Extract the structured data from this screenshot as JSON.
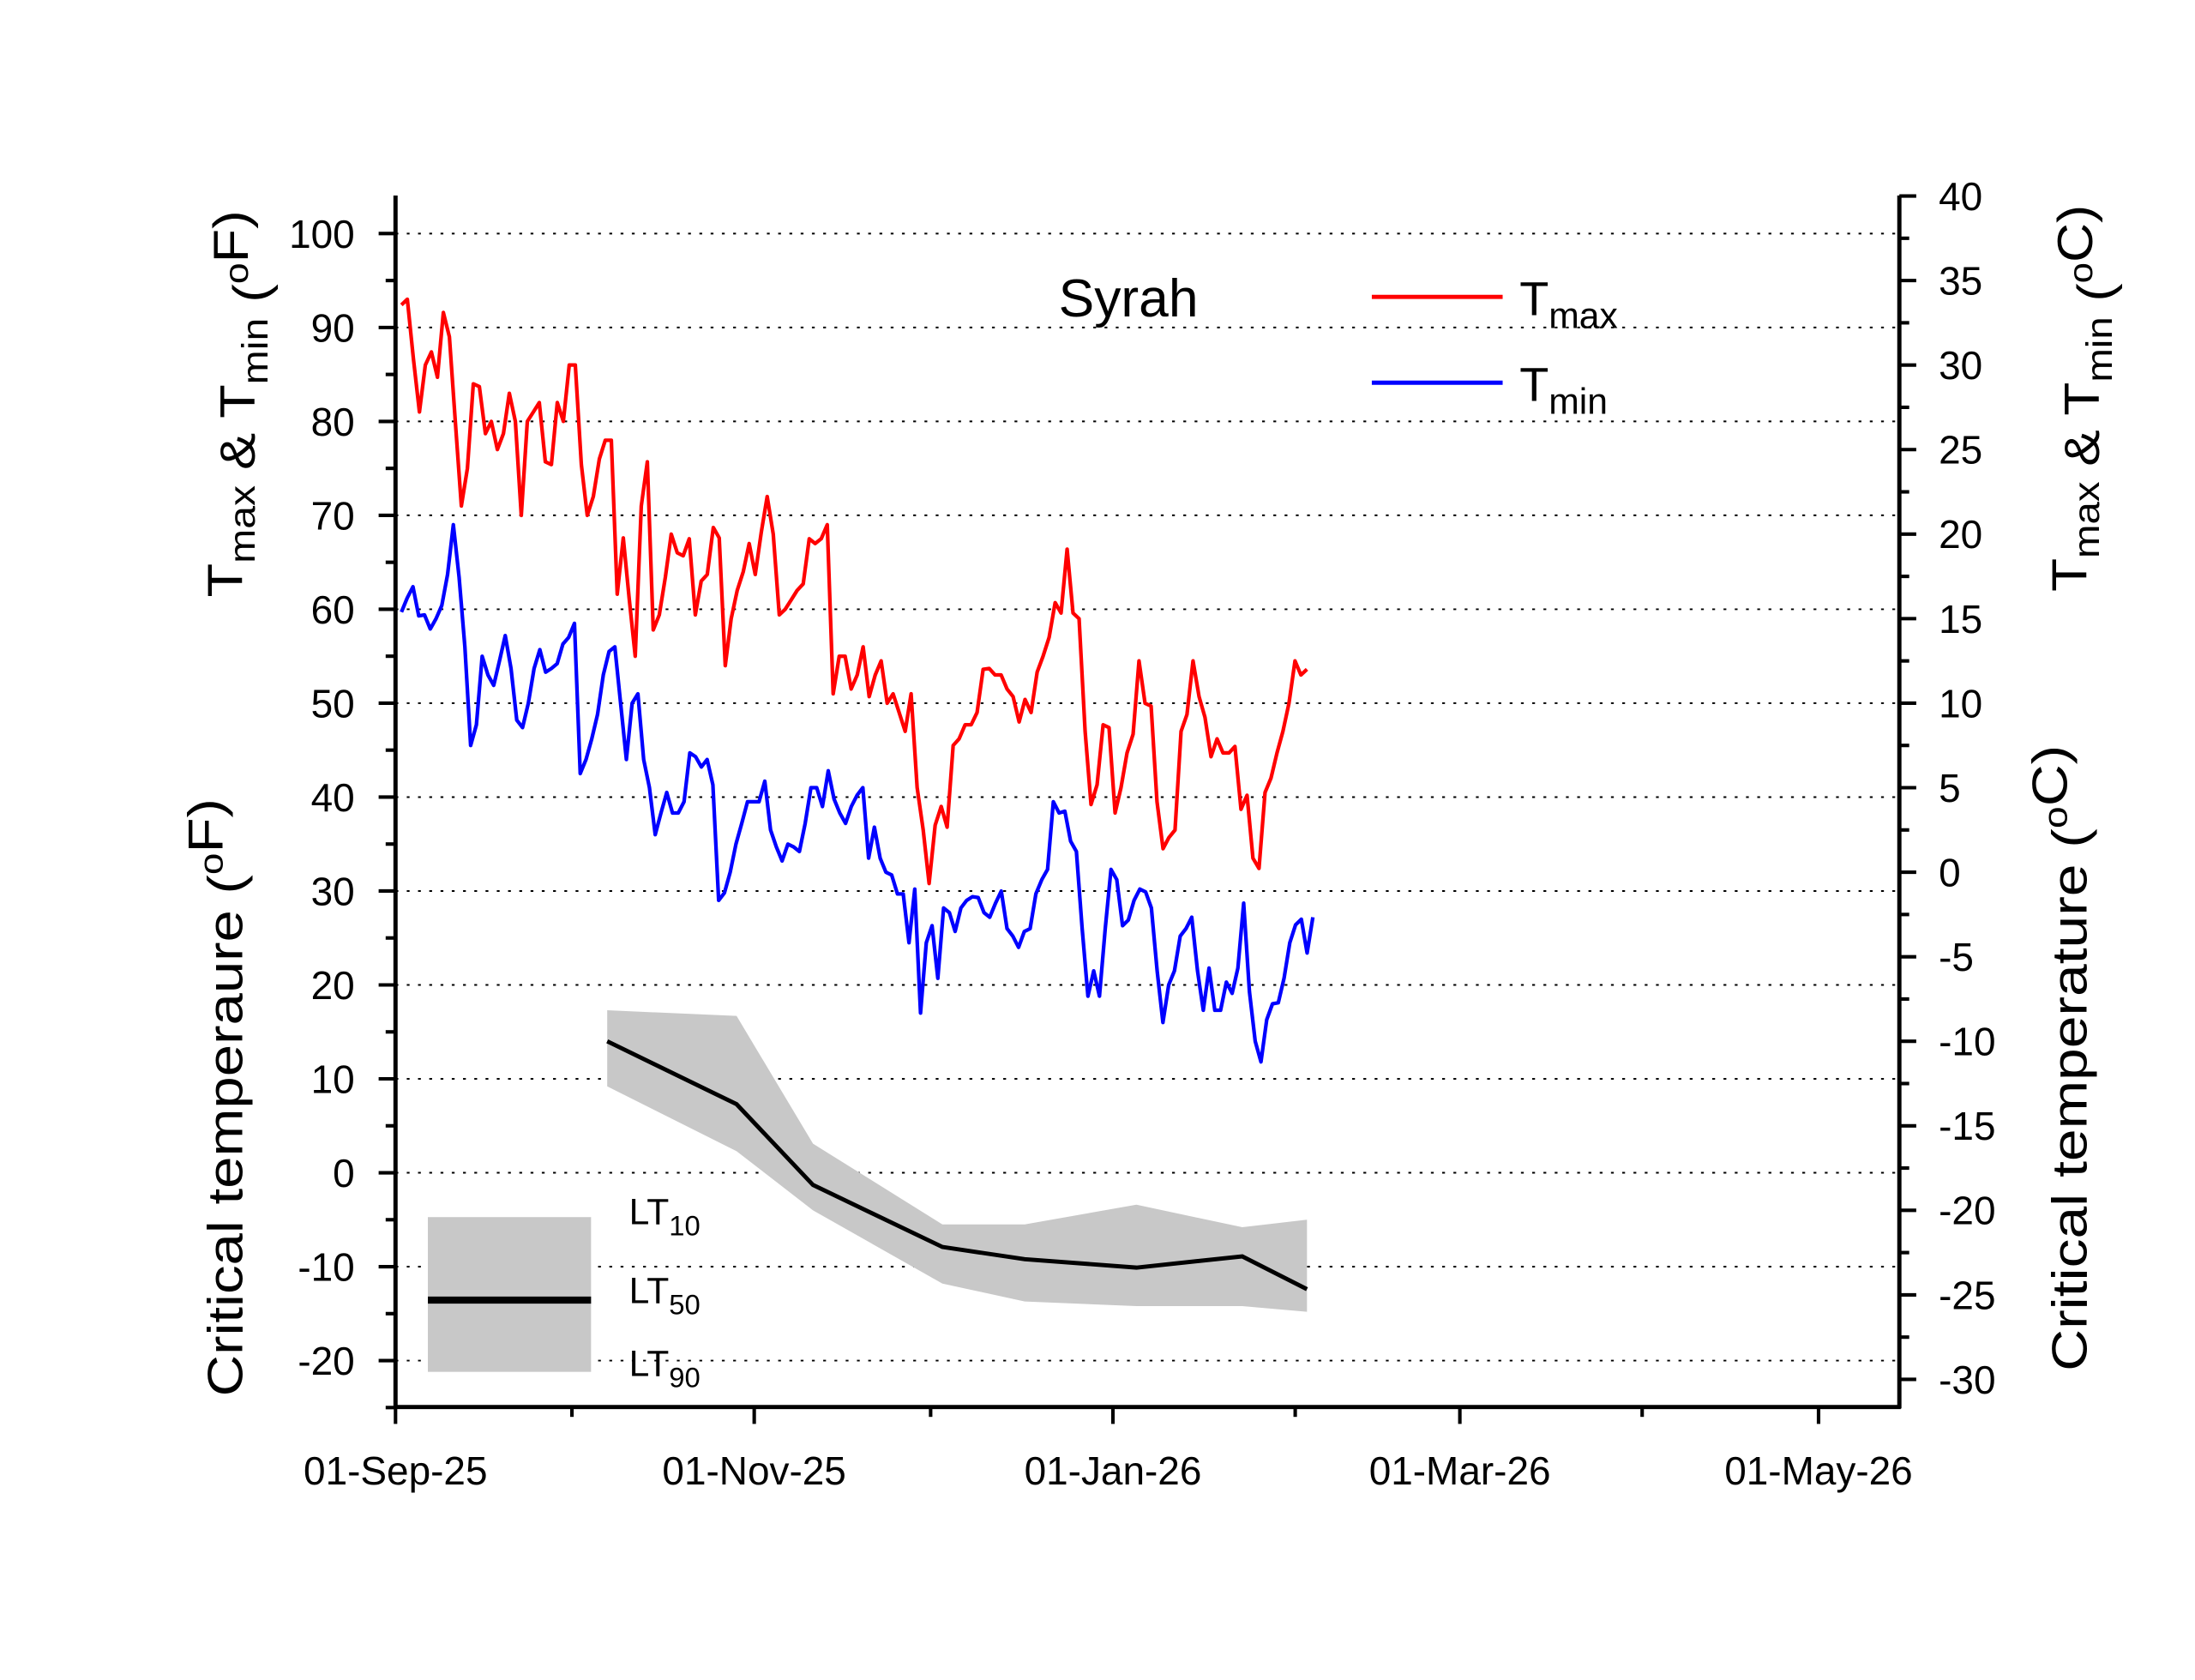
{
  "chart_data": {
    "type": "line",
    "title": "Syrah",
    "x_axis": {
      "type": "date",
      "range": [
        "2025-09-01",
        "2026-05-14"
      ],
      "tick_labels": [
        "01-Sep-25",
        "01-Nov-25",
        "01-Jan-26",
        "01-Mar-26",
        "01-May-26"
      ],
      "tick_days": [
        0,
        61,
        122,
        181,
        242
      ],
      "minor_tick_days": [
        30,
        91,
        153,
        212
      ],
      "unit": "days since 2025-09-01"
    },
    "y_left": {
      "range": [
        -25,
        104
      ],
      "ticks": [
        -20,
        -10,
        0,
        10,
        20,
        30,
        40,
        50,
        60,
        70,
        80,
        90,
        100
      ],
      "minor_step": 5,
      "grid": "dotted",
      "title_top": [
        {
          "t": "T"
        },
        {
          "t": "max",
          "sub": true
        },
        {
          "t": " & T"
        },
        {
          "t": "min",
          "sub": true
        },
        {
          "t": " ("
        },
        {
          "t": "o",
          "sup": true
        },
        {
          "t": "F)"
        }
      ],
      "title_bottom": [
        {
          "t": "Critical temperaure ("
        },
        {
          "t": "o",
          "sup": true
        },
        {
          "t": "F)"
        }
      ]
    },
    "y_right": {
      "unit": "°C",
      "range": [
        -31.7,
        40
      ],
      "ticks": [
        -30,
        -25,
        -20,
        -15,
        -10,
        -5,
        0,
        5,
        10,
        15,
        20,
        25,
        30,
        35,
        40
      ],
      "title_top": [
        {
          "t": "T"
        },
        {
          "t": "max",
          "sub": true
        },
        {
          "t": " & T"
        },
        {
          "t": "min",
          "sub": true
        },
        {
          "t": " ("
        },
        {
          "t": "o",
          "sup": true
        },
        {
          "t": "C)"
        }
      ],
      "title_bottom": [
        {
          "t": "Critical temperature ("
        },
        {
          "t": "o",
          "sup": true
        },
        {
          "t": "C)"
        }
      ]
    },
    "legend": {
      "placement": "top-right",
      "entries": [
        {
          "label": "T",
          "sub": "max",
          "color": "#ff0000"
        },
        {
          "label": "T",
          "sub": "min",
          "color": "#0000ff"
        }
      ]
    },
    "lt_legend": {
      "placement": "bottom-left",
      "entries": [
        {
          "label": "LT",
          "sub": "10"
        },
        {
          "label": "LT",
          "sub": "50"
        },
        {
          "label": "LT",
          "sub": "90"
        }
      ],
      "band_color": "#c8c8c8",
      "line_color": "#000000"
    },
    "series": [
      {
        "name": "Tmax",
        "color": "#ff0000",
        "unit": "°F",
        "start": "2025-09-02",
        "end": "2026-02-03",
        "values": [
          92.4,
          93,
          86.7,
          81,
          86,
          87.4,
          84.7,
          91.6,
          89,
          80,
          71,
          75,
          84,
          83.7,
          78.7,
          80,
          77,
          78.7,
          83,
          80,
          70,
          80,
          81,
          82,
          75.7,
          75.4,
          82,
          80,
          86,
          86,
          75.4,
          70,
          72,
          76,
          78,
          78,
          61.6,
          67.6,
          61,
          55,
          71,
          75.7,
          57.8,
          59.4,
          63.4,
          68,
          66,
          65.7,
          67.5,
          59.4,
          63,
          63.7,
          68.7,
          67.6,
          54,
          59,
          62,
          64,
          67,
          63.7,
          68.2,
          72,
          68,
          59.4,
          60,
          61,
          62,
          62.7,
          67.5,
          67,
          67.5,
          69,
          51,
          55,
          55,
          51.5,
          53,
          56,
          50.7,
          53,
          54.5,
          50,
          51,
          49,
          47,
          51,
          41,
          36.5,
          30.8,
          37,
          39,
          36.8,
          45.5,
          46.2,
          47.7,
          47.7,
          49,
          53.6,
          53.7,
          53,
          53,
          51.5,
          50.7,
          48,
          50.4,
          49,
          53.3,
          55,
          57,
          60.7,
          59.6,
          66.4,
          59.6,
          59,
          47,
          39.2,
          41.3,
          47.7,
          47.4,
          38.3,
          41,
          44.7,
          46.7,
          54.5,
          50,
          49.7,
          39.5,
          34.5,
          35.7,
          36.5,
          47,
          48.8,
          54.5,
          50.7,
          48.5,
          44.3,
          46.2,
          44.7,
          44.7,
          45.4,
          38.7,
          40.2,
          33.5,
          32.4,
          40.5,
          42,
          44.7,
          47,
          50,
          54.5,
          53,
          53.6
        ]
      },
      {
        "name": "Tmin",
        "color": "#0000ff",
        "unit": "°F",
        "start": "2025-09-02",
        "end": "2026-02-04",
        "values": [
          59.7,
          61.2,
          62.4,
          59.3,
          59.4,
          57.9,
          59,
          60.4,
          63.7,
          69,
          63.4,
          56,
          45.5,
          47.7,
          55,
          53,
          51.9,
          54.5,
          57.2,
          53.7,
          48.2,
          47.4,
          50,
          53.7,
          55.7,
          53.3,
          53.7,
          54.2,
          56.3,
          57,
          58.5,
          42.5,
          44,
          46.2,
          48.8,
          53,
          55.5,
          56,
          50,
          44,
          50,
          51,
          44,
          41,
          36,
          38.3,
          40.5,
          38.3,
          38.3,
          39.5,
          44.7,
          44.3,
          43.2,
          44,
          41.3,
          29,
          29.8,
          32,
          35,
          37.2,
          39.5,
          39.5,
          39.5,
          41.7,
          36.5,
          34.7,
          33.2,
          35,
          34.7,
          34.2,
          37.2,
          41,
          41,
          39,
          42.8,
          39.8,
          38.3,
          37.2,
          39,
          40.2,
          41,
          33.5,
          36.8,
          33.5,
          32,
          31.7,
          29.7,
          29.7,
          24.5,
          30.2,
          17,
          24.5,
          26.3,
          20.7,
          28.2,
          27.7,
          25.7,
          28.2,
          29,
          29.4,
          29.3,
          27.7,
          27.2,
          28.7,
          30,
          26,
          25.2,
          24,
          25.7,
          26,
          29.7,
          31.2,
          32.3,
          39.5,
          38.3,
          38.5,
          35.3,
          34.2,
          26,
          18.8,
          21.5,
          18.8,
          26,
          32.3,
          31.2,
          26.3,
          26.9,
          29,
          30.2,
          29.9,
          28.2,
          21.5,
          16,
          20,
          21.5,
          25.2,
          26,
          27.2,
          21.5,
          17.3,
          21.8,
          17.3,
          17.3,
          20.3,
          19.1,
          21.8,
          28.7,
          19.3,
          14,
          11.8,
          16.3,
          18,
          18.1,
          20.7,
          24.5,
          26.4,
          27,
          23.4,
          27.2
        ]
      },
      {
        "name": "LT50",
        "color": "#000000",
        "unit": "°F",
        "x_days": [
          36,
          58,
          71,
          93,
          107,
          126,
          144,
          155
        ],
        "values": [
          14,
          7.3,
          -1.3,
          -7.9,
          -9.2,
          -10.1,
          -8.9,
          -12.4
        ]
      },
      {
        "name": "LT10",
        "unit": "°F",
        "x_days": [
          36,
          58,
          71,
          93,
          107,
          126,
          144,
          155
        ],
        "values": [
          17.3,
          16.7,
          3.1,
          -5.5,
          -5.5,
          -3.4,
          -5.8,
          -5
        ]
      },
      {
        "name": "LT90",
        "unit": "°F",
        "x_days": [
          36,
          58,
          71,
          93,
          107,
          126,
          144,
          155
        ],
        "values": [
          9.2,
          2.3,
          -4,
          -11.8,
          -13.7,
          -14.2,
          -14.2,
          -14.8
        ]
      }
    ]
  }
}
